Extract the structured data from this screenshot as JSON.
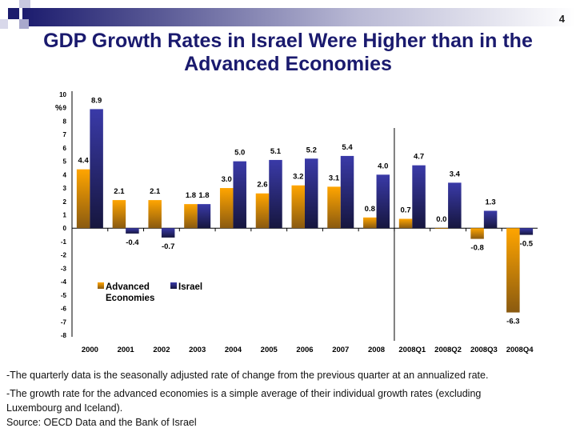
{
  "slide": {
    "page_number": "4",
    "title_line1": "GDP Growth Rates in Israel Were Higher than in the",
    "title_line2": "Advanced Economies",
    "notes": [
      "-The quarterly data is the seasonally adjusted rate of change from the previous quarter at an annualized rate.",
      "-The growth rate for the advanced economies is a simple average of their individual growth rates (excluding",
      "Luxembourg and Iceland).",
      "Source: OECD Data and the Bank of Israel"
    ]
  },
  "chart_data": {
    "type": "bar",
    "ylabel": "%",
    "ylim": [
      -8,
      10
    ],
    "yticks": [
      10,
      9,
      8,
      7,
      6,
      5,
      4,
      3,
      2,
      1,
      0,
      -1,
      -2,
      -3,
      -4,
      -5,
      -6,
      -7,
      -8
    ],
    "categories": [
      "2000",
      "2001",
      "2002",
      "2003",
      "2004",
      "2005",
      "2006",
      "2007",
      "2008",
      "2008Q1",
      "2008Q2",
      "2008Q3",
      "2008Q4"
    ],
    "series": [
      {
        "name": "Advanced Economies",
        "legend_lines": [
          "Advanced",
          "Economies"
        ],
        "color": "#f5a000",
        "values": [
          4.4,
          2.1,
          2.1,
          1.8,
          3.0,
          2.6,
          3.2,
          3.1,
          0.8,
          0.7,
          0.0,
          -0.8,
          -6.3
        ],
        "labels": [
          "4.4",
          "2.1",
          "2.1",
          "1.8",
          "3.0",
          "2.6",
          "3.2",
          "3.1",
          "0.8",
          "0.7",
          "0.0",
          "-0.8",
          "-6.3"
        ]
      },
      {
        "name": "Israel",
        "legend_lines": [
          "Israel"
        ],
        "color": "#33339a",
        "values": [
          8.9,
          -0.4,
          -0.7,
          1.8,
          5.0,
          5.1,
          5.2,
          5.4,
          4.0,
          4.7,
          3.4,
          1.3,
          -0.5
        ],
        "labels": [
          "8.9",
          "-0.4",
          "-0.7",
          "1.8",
          "5.0",
          "5.1",
          "5.2",
          "5.4",
          "4.0",
          "4.7",
          "3.4",
          "1.3",
          "-0.5"
        ]
      }
    ],
    "divider_after": "2008",
    "legend_position": "lower-left",
    "grid": false
  }
}
